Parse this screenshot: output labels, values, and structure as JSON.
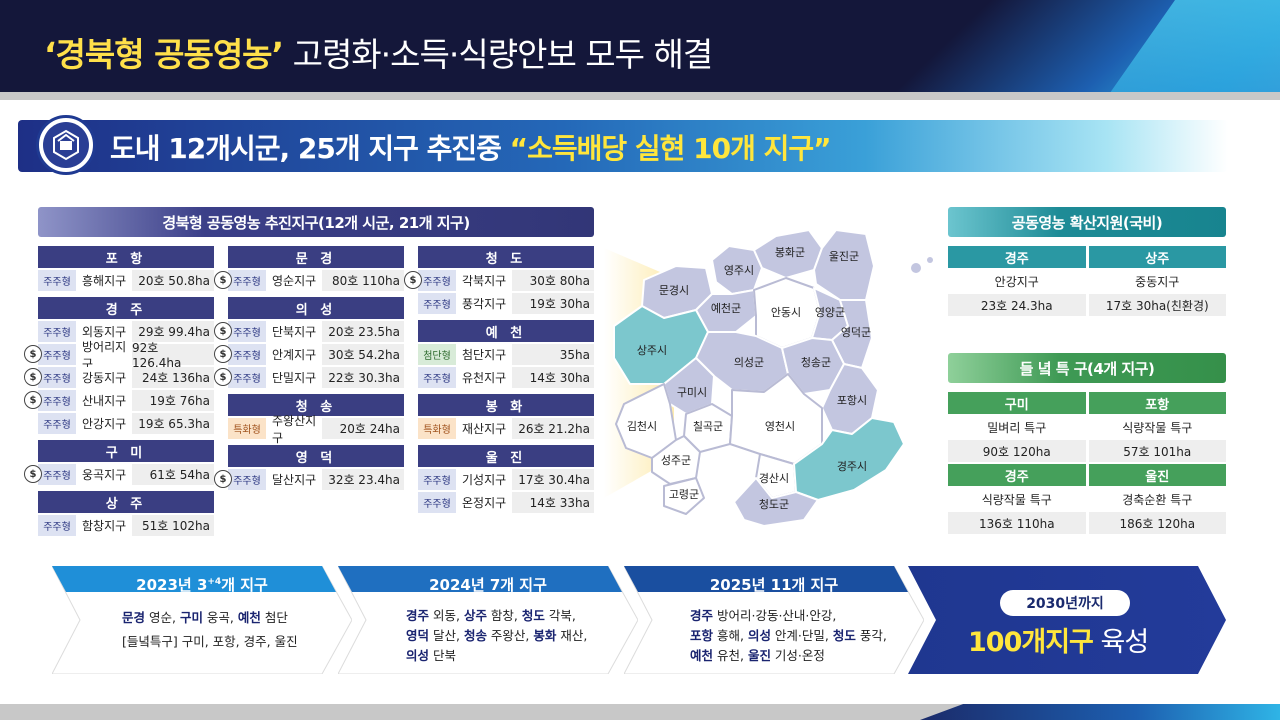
{
  "header": {
    "title_highlight": "‘경북형 공동영농’",
    "title_rest": " 고령화·소득·식량안보 모두 해결"
  },
  "banner": {
    "text": "도내 12개시군, 25개 지구 추진중 ",
    "highlight": "“소득배당 실현 10개 지구”"
  },
  "left_panel": {
    "title": "경북형 공동영농 추진지구(12개 시군, 21개 지구)",
    "coin_symbol": "$",
    "columns": [
      [
        {
          "region": "포 항",
          "rows": [
            {
              "type": "주주형",
              "name": "흥해지구",
              "value": "20호 50.8ha",
              "coin": false
            }
          ]
        },
        {
          "region": "경 주",
          "rows": [
            {
              "type": "주주형",
              "name": "외동지구",
              "value": "29호 99.4ha",
              "coin": false
            },
            {
              "type": "주주형",
              "name": "방어리지구",
              "value": "92호 126.4ha",
              "coin": true
            },
            {
              "type": "주주형",
              "name": "강동지구",
              "value": "24호 136ha",
              "coin": true
            },
            {
              "type": "주주형",
              "name": "산내지구",
              "value": "19호 76ha",
              "coin": true
            },
            {
              "type": "주주형",
              "name": "안강지구",
              "value": "19호 65.3ha",
              "coin": false
            }
          ]
        },
        {
          "region": "구 미",
          "rows": [
            {
              "type": "주주형",
              "name": "웅곡지구",
              "value": "61호 54ha",
              "coin": true
            }
          ]
        },
        {
          "region": "상 주",
          "rows": [
            {
              "type": "주주형",
              "name": "함창지구",
              "value": "51호 102ha",
              "coin": false
            }
          ]
        }
      ],
      [
        {
          "region": "문 경",
          "rows": [
            {
              "type": "주주형",
              "name": "영순지구",
              "value": "80호 110ha",
              "coin": true
            }
          ]
        },
        {
          "region": "의 성",
          "rows": [
            {
              "type": "주주형",
              "name": "단북지구",
              "value": "20호 23.5ha",
              "coin": true
            },
            {
              "type": "주주형",
              "name": "안계지구",
              "value": "30호 54.2ha",
              "coin": true
            },
            {
              "type": "주주형",
              "name": "단밀지구",
              "value": "22호 30.3ha",
              "coin": true
            }
          ]
        },
        {
          "region": "청 송",
          "rows": [
            {
              "type": "특화형",
              "name": "주왕산지구",
              "value": "20호 24ha",
              "coin": false
            }
          ]
        },
        {
          "region": "영 덕",
          "rows": [
            {
              "type": "주주형",
              "name": "달산지구",
              "value": "32호 23.4ha",
              "coin": true
            }
          ]
        }
      ],
      [
        {
          "region": "청 도",
          "rows": [
            {
              "type": "주주형",
              "name": "각북지구",
              "value": "30호 80ha",
              "coin": true
            },
            {
              "type": "주주형",
              "name": "풍각지구",
              "value": "19호 30ha",
              "coin": false
            }
          ]
        },
        {
          "region": "예 천",
          "rows": [
            {
              "type": "첨단형",
              "name": "첨단지구",
              "value": "35ha",
              "coin": false
            },
            {
              "type": "주주형",
              "name": "유천지구",
              "value": "14호 30ha",
              "coin": false
            }
          ]
        },
        {
          "region": "봉 화",
          "rows": [
            {
              "type": "특화형",
              "name": "재산지구",
              "value": "26호 21.2ha",
              "coin": false
            }
          ]
        },
        {
          "region": "울 진",
          "rows": [
            {
              "type": "주주형",
              "name": "기성지구",
              "value": "17호 30.4ha",
              "coin": false
            },
            {
              "type": "주주형",
              "name": "온정지구",
              "value": "14호 33ha",
              "coin": false
            }
          ]
        }
      ]
    ]
  },
  "map": {
    "labels": [
      "영주시",
      "봉화군",
      "울진군",
      "문경시",
      "예천군",
      "안동시",
      "영양군",
      "상주시",
      "영덕군",
      "의성군",
      "청송군",
      "구미시",
      "포항시",
      "김천시",
      "칠곡군",
      "영천시",
      "성주군",
      "고령군",
      "경산시",
      "경주시",
      "청도군"
    ],
    "highlight_color": "#7cc7cd",
    "base_color": "#c3c6e0",
    "white_color": "#ffffff"
  },
  "right_panel_1": {
    "title": "공동영농 확산지원(국비)",
    "headers": [
      "경주",
      "상주"
    ],
    "row1": [
      "안강지구",
      "중동지구"
    ],
    "row2": [
      "23호 24.3ha",
      "17호 30ha(친환경)"
    ]
  },
  "right_panel_2": {
    "title": "들 녘 특 구(4개 지구)",
    "headers_a": [
      "구미",
      "포항"
    ],
    "row_a1": [
      "밀벼리 특구",
      "식량작물 특구"
    ],
    "row_a2": [
      "90호 120ha",
      "57호 101ha"
    ],
    "headers_b": [
      "경주",
      "울진"
    ],
    "row_b1": [
      "식량작물 특구",
      "경축순환 특구"
    ],
    "row_b2": [
      "136호 110ha",
      "186호 120ha"
    ]
  },
  "timeline": {
    "step1": {
      "title_a": "2023년 3",
      "title_sup": "+4",
      "title_b": "개 지구",
      "l1_b1": "문경",
      "l1_t1": " 영순, ",
      "l1_b2": "구미",
      "l1_t2": " 웅곡, ",
      "l1_b3": "예천",
      "l1_t3": " 첨단",
      "l2": "[들녘특구] 구미, 포항, 경주, 울진"
    },
    "step2": {
      "title": "2024년 7개 지구",
      "l1_b1": "경주",
      "l1_t1": " 외동, ",
      "l1_b2": "상주",
      "l1_t2": " 함창, ",
      "l1_b3": "청도",
      "l1_t3": " 각북,",
      "l2_b1": "영덕",
      "l2_t1": " 달산, ",
      "l2_b2": "청송",
      "l2_t2": " 주왕산, ",
      "l2_b3": "봉화",
      "l2_t3": " 재산,",
      "l3_b1": "의성",
      "l3_t1": " 단북"
    },
    "step3": {
      "title": "2025년 11개 지구",
      "l1_b1": "경주",
      "l1_t1": " 방어리·강동·산내·안강,",
      "l2_b1": "포항",
      "l2_t1": " 흥해, ",
      "l2_b2": "의성",
      "l2_t2": " 안계·단밀, ",
      "l2_b3": "청도",
      "l2_t3": " 풍각,",
      "l3_b1": "예천",
      "l3_t1": " 유천, ",
      "l3_b2": "울진",
      "l3_t2": " 기성·온정"
    },
    "goal": {
      "pill": "2030년까지",
      "big": "100개지구",
      "small": " 육성"
    }
  }
}
